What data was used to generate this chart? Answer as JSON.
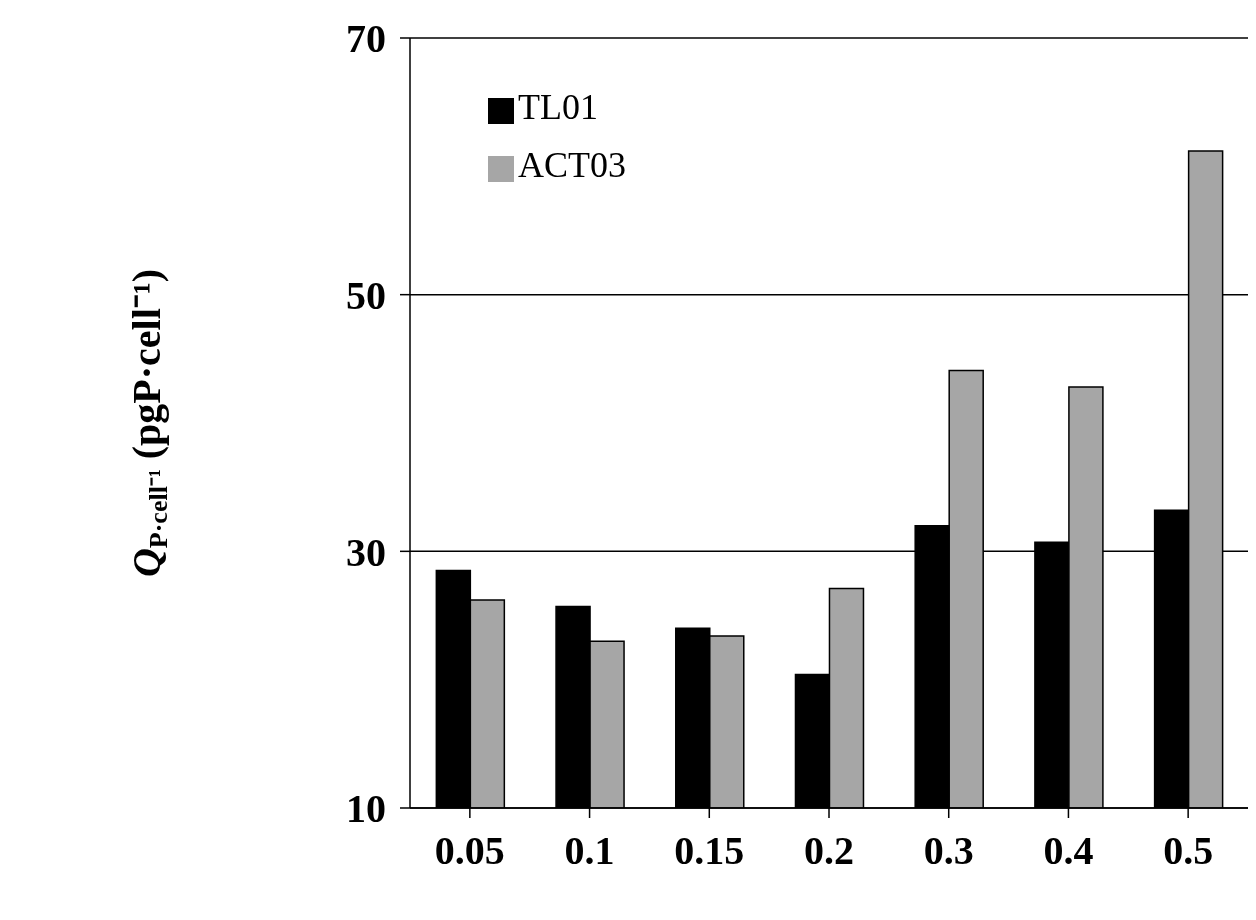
{
  "chart_data": {
    "type": "bar",
    "categories": [
      "0.05",
      "0.1",
      "0.15",
      "0.2",
      "0.3",
      "0.4",
      "0.5"
    ],
    "ylabel": "Q$_{P·cell⁻¹}$  (pgP·cell⁻¹)",
    "series": [
      {
        "name": "TL01",
        "color": "#000000",
        "values": [
          28.5,
          25.7,
          24.0,
          20.4,
          32.0,
          30.7,
          33.2
        ]
      },
      {
        "name": "ACT03",
        "color": "#a6a6a6",
        "values": [
          26.2,
          23.0,
          23.4,
          27.1,
          44.1,
          42.8,
          61.2
        ]
      }
    ],
    "ylim": [
      10,
      70
    ],
    "yticks": [
      10,
      30,
      50,
      70
    ],
    "grid": "y",
    "legend": "top left"
  }
}
